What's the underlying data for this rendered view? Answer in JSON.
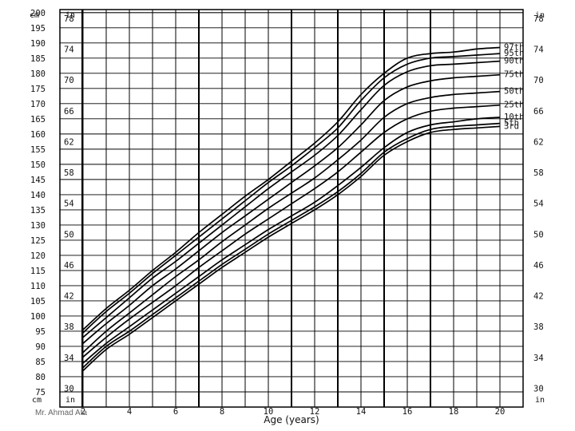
{
  "chart_data": {
    "type": "line",
    "xlabel": "Age (years)",
    "x_ticks": [
      "2",
      "4",
      "6",
      "8",
      "10",
      "12",
      "14",
      "16",
      "18",
      "20"
    ],
    "xlim": [
      1.0,
      21.0
    ],
    "ylim_cm": [
      70,
      201
    ],
    "cm_ticks": [
      "75",
      "80",
      "85",
      "90",
      "95",
      "100",
      "105",
      "110",
      "115",
      "120",
      "125",
      "130",
      "135",
      "140",
      "145",
      "150",
      "155",
      "160",
      "165",
      "170",
      "175",
      "180",
      "185",
      "190",
      "195",
      "200"
    ],
    "in_ticks": [
      "30",
      "34",
      "38",
      "42",
      "46",
      "50",
      "54",
      "58",
      "62",
      "66",
      "70",
      "74",
      "78"
    ],
    "left_unit_top": "cm",
    "left_unit_bottom": "cm",
    "inner_unit_top": "in",
    "inner_unit_bottom": "in",
    "right_unit_top": "in",
    "right_unit_bottom": "in",
    "grid": true,
    "series": [
      {
        "name": "97th",
        "x": [
          2,
          3,
          4,
          5,
          6,
          7,
          8,
          9,
          10,
          11,
          12,
          13,
          14,
          15,
          16,
          17,
          18,
          19,
          20
        ],
        "y": [
          95.5,
          102.5,
          108.5,
          115,
          121,
          127.5,
          133.5,
          139.5,
          145,
          151,
          157,
          164,
          173,
          180,
          185,
          186.5,
          187,
          188,
          188.5
        ]
      },
      {
        "name": "95th",
        "x": [
          2,
          3,
          4,
          5,
          6,
          7,
          8,
          9,
          10,
          11,
          12,
          13,
          14,
          15,
          16,
          17,
          18,
          19,
          20
        ],
        "y": [
          94.5,
          101.5,
          107.5,
          114,
          120,
          126,
          132,
          138,
          144,
          149.5,
          155.5,
          162,
          171,
          178.5,
          183,
          185,
          185.5,
          186,
          186.5
        ]
      },
      {
        "name": "90th",
        "x": [
          2,
          3,
          4,
          5,
          6,
          7,
          8,
          9,
          10,
          11,
          12,
          13,
          14,
          15,
          16,
          17,
          18,
          19,
          20
        ],
        "y": [
          93,
          99.5,
          106,
          112.5,
          118,
          124,
          130,
          136,
          142,
          147.5,
          153,
          159.5,
          168,
          176,
          180.5,
          182.5,
          183,
          183.5,
          184
        ]
      },
      {
        "name": "75th",
        "x": [
          2,
          3,
          4,
          5,
          6,
          7,
          8,
          9,
          10,
          11,
          12,
          13,
          14,
          15,
          16,
          17,
          18,
          19,
          20
        ],
        "y": [
          91,
          97.5,
          103.5,
          110,
          115.5,
          121.5,
          127.5,
          133,
          138.5,
          144,
          149.5,
          155.5,
          163,
          171,
          175.5,
          177.5,
          178.5,
          179,
          179.5
        ]
      },
      {
        "name": "50th",
        "x": [
          2,
          3,
          4,
          5,
          6,
          7,
          8,
          9,
          10,
          11,
          12,
          13,
          14,
          15,
          16,
          17,
          18,
          19,
          20
        ],
        "y": [
          88,
          95,
          101,
          107,
          113,
          118.5,
          124.5,
          130,
          135.5,
          140.5,
          145.5,
          151.5,
          158,
          165.5,
          170,
          172,
          173,
          173.5,
          174
        ]
      },
      {
        "name": "25th",
        "x": [
          2,
          3,
          4,
          5,
          6,
          7,
          8,
          9,
          10,
          11,
          12,
          13,
          14,
          15,
          16,
          17,
          18,
          19,
          20
        ],
        "y": [
          86.5,
          93,
          99,
          104.5,
          110,
          116,
          121.5,
          127,
          132,
          137,
          142,
          147.5,
          154,
          160.5,
          165,
          167.5,
          168.5,
          169,
          169.5
        ]
      },
      {
        "name": "10th",
        "x": [
          2,
          3,
          4,
          5,
          6,
          7,
          8,
          9,
          10,
          11,
          12,
          13,
          14,
          15,
          16,
          17,
          18,
          19,
          20
        ],
        "y": [
          84.5,
          91,
          96.5,
          102,
          107.5,
          113,
          118.5,
          123.5,
          128.5,
          133,
          137.5,
          143,
          149,
          155.5,
          160.5,
          163,
          164,
          165,
          165.5
        ]
      },
      {
        "name": "5th",
        "x": [
          2,
          3,
          4,
          5,
          6,
          7,
          8,
          9,
          10,
          11,
          12,
          13,
          14,
          15,
          16,
          17,
          18,
          19,
          20
        ],
        "y": [
          83,
          90,
          95,
          100.5,
          106,
          111.5,
          117,
          122,
          127,
          131.5,
          136,
          141,
          147,
          154,
          158.5,
          161.5,
          162.5,
          163,
          163.5
        ]
      },
      {
        "name": "3rd",
        "x": [
          2,
          3,
          4,
          5,
          6,
          7,
          8,
          9,
          10,
          11,
          12,
          13,
          14,
          15,
          16,
          17,
          18,
          19,
          20
        ],
        "y": [
          82,
          89,
          94,
          99.5,
          105,
          110.5,
          116,
          121,
          126,
          130.5,
          135,
          140,
          146,
          153,
          157.5,
          160.5,
          161.5,
          162,
          162.5
        ]
      }
    ]
  },
  "footer": {
    "credit": "Mr. Ahmad Ata"
  }
}
